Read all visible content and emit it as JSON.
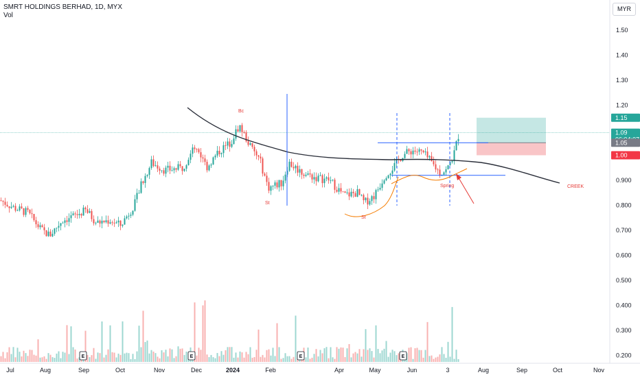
{
  "header": {
    "title": "SMRT HOLDINGS BERHAD, 1D, MYX",
    "volume_label": "Vol"
  },
  "currency_button": "MYR",
  "price_axis": {
    "ticks": [
      "1.50",
      "1.40",
      "1.30",
      "1.20",
      "0.900",
      "0.800",
      "0.700",
      "0.600",
      "0.500",
      "0.400",
      "0.300",
      "0.200"
    ],
    "tags": [
      {
        "label": "1.15",
        "color": "#26a69a",
        "text_color": "#ffffff"
      },
      {
        "label": "1.09",
        "sub": "06:04:07",
        "color": "#26a69a",
        "text_color": "#ffffff"
      },
      {
        "label": "1.05",
        "color": "#787b86",
        "text_color": "#ffffff"
      },
      {
        "label": "1.00",
        "color": "#f23645",
        "text_color": "#ffffff"
      }
    ]
  },
  "time_axis": {
    "labels": [
      "Jul",
      "Aug",
      "Sep",
      "Oct",
      "Nov",
      "Dec",
      "2024",
      "Feb",
      "Apr",
      "May",
      "Jun",
      "3",
      "Aug",
      "Sep",
      "Oct",
      "Nov"
    ]
  },
  "annotations": {
    "bc": "Bc",
    "st1": "St",
    "st2": "St",
    "spring": "Spring",
    "creek": "CREEK"
  },
  "event_marker": "E",
  "colors": {
    "up": "#26a69a",
    "down": "#ef5350",
    "creek_line": "#2a2e39",
    "blue_lines": "#2962ff",
    "orange_curve": "#f57c00",
    "arrow": "#e53935",
    "profit_zone": "#b2dfdb",
    "loss_zone": "#f8bbbd"
  },
  "chart_data": {
    "type": "candlestick",
    "title": "SMRT HOLDINGS BERHAD, 1D, MYX",
    "currency": "MYR",
    "last_price": 1.09,
    "bar_countdown": "06:04:07",
    "position_levels": {
      "target": 1.15,
      "entry": 1.05,
      "stop": 1.0
    },
    "price_range": [
      0.17,
      1.6
    ],
    "key_points": [
      {
        "date": "Jul",
        "price": 0.8
      },
      {
        "date": "Aug",
        "price": 0.68
      },
      {
        "date": "Sep",
        "price": 0.73
      },
      {
        "date": "Oct",
        "price": 0.72
      },
      {
        "date": "Nov",
        "price": 0.95
      },
      {
        "date": "Dec",
        "price": 1.05
      },
      {
        "date": "Bc",
        "price": 1.12
      },
      {
        "date": "2024",
        "price": 1.0
      },
      {
        "date": "Feb",
        "price": 0.88
      },
      {
        "date": "Apr",
        "price": 0.82
      },
      {
        "date": "May",
        "price": 0.95
      },
      {
        "date": "Jun",
        "price": 1.0
      },
      {
        "date": "Spring",
        "price": 0.92
      },
      {
        "date": "last",
        "price": 1.09
      }
    ],
    "volume_axis": "Vol"
  }
}
